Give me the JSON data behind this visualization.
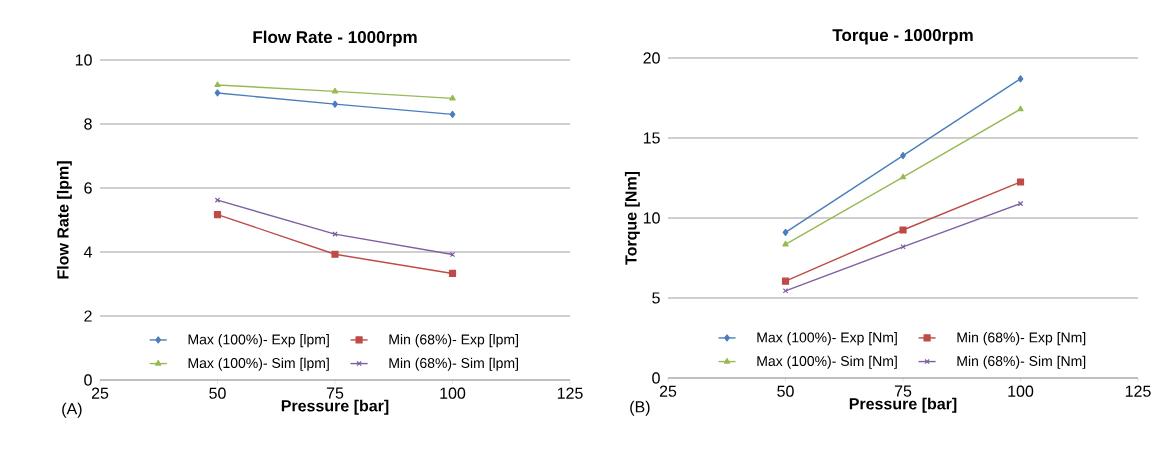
{
  "chart_data": [
    {
      "type": "line",
      "title": "Flow Rate - 1000rpm",
      "xlabel": "Pressure [bar]",
      "ylabel": "Flow Rate  [lpm]",
      "x": [
        50,
        75,
        100
      ],
      "xlim": [
        25,
        125
      ],
      "xticks": [
        25,
        50,
        75,
        100,
        125
      ],
      "ylim": [
        0,
        10
      ],
      "yticks": [
        0,
        2,
        4,
        6,
        8,
        10
      ],
      "grid": "y",
      "legend": "bottom",
      "line_style": "solid",
      "annotations": [
        "(A)"
      ],
      "series": [
        {
          "name": "Max (100%)- Exp [lpm]",
          "color": "#4a7ebb",
          "marker": "diamond",
          "values": [
            8.97,
            8.62,
            8.3
          ]
        },
        {
          "name": "Min (68%)- Exp [lpm]",
          "color": "#be4b48",
          "marker": "square",
          "values": [
            5.17,
            3.93,
            3.33
          ]
        },
        {
          "name": "Max (100%)- Sim [lpm]",
          "color": "#98b954",
          "marker": "triangle",
          "values": [
            9.22,
            9.02,
            8.8
          ]
        },
        {
          "name": "Min (68%)- Sim [lpm]",
          "color": "#7d60a0",
          "marker": "cross",
          "values": [
            5.62,
            4.56,
            3.92
          ]
        }
      ]
    },
    {
      "type": "line",
      "title": "Torque - 1000rpm",
      "xlabel": "Pressure [bar]",
      "ylabel": "Torque [Nm]",
      "x": [
        50,
        75,
        100
      ],
      "xlim": [
        25,
        125
      ],
      "xticks": [
        25,
        50,
        75,
        100,
        125
      ],
      "ylim": [
        0,
        20
      ],
      "yticks": [
        0,
        5,
        10,
        15,
        20
      ],
      "grid": "y",
      "legend": "bottom",
      "line_style": "solid",
      "annotations": [
        "(B)"
      ],
      "series": [
        {
          "name": "Max (100%)- Exp [Nm]",
          "color": "#4a7ebb",
          "marker": "diamond",
          "values": [
            9.1,
            13.9,
            18.7
          ]
        },
        {
          "name": "Min (68%)- Exp [Nm]",
          "color": "#be4b48",
          "marker": "square",
          "values": [
            6.05,
            9.25,
            12.25
          ]
        },
        {
          "name": "Max (100%)- Sim [Nm]",
          "color": "#98b954",
          "marker": "triangle",
          "values": [
            8.35,
            12.55,
            16.8
          ]
        },
        {
          "name": "Min (68%)- Sim [Nm]",
          "color": "#7d60a0",
          "marker": "cross",
          "values": [
            5.45,
            8.2,
            10.9
          ]
        }
      ]
    }
  ]
}
